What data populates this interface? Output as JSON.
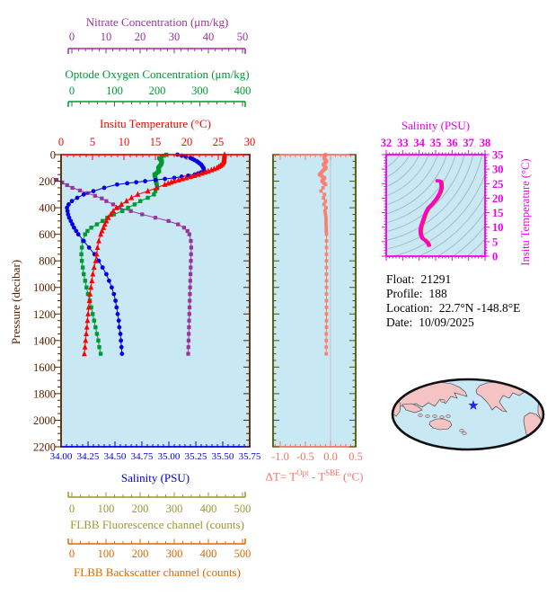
{
  "figure": {
    "bg": "#FFFFFF",
    "plot_bg": "#C8E8F3"
  },
  "axes": {
    "nitrate": {
      "title": "Nitrate Concentration (μm/kg)",
      "color": "#993399",
      "ticks": [
        0,
        10,
        20,
        30,
        40,
        50
      ],
      "range": [
        0,
        50
      ]
    },
    "oxygen": {
      "title": "Optode Oxygen Concentration (μm/kg)",
      "color": "#009933",
      "ticks": [
        0,
        100,
        200,
        300,
        400
      ],
      "range": [
        0,
        400
      ]
    },
    "temperature": {
      "title": "Insitu Temperature (°C)",
      "color": "#FF0000",
      "ticks": [
        0,
        5,
        10,
        15,
        20,
        25,
        30
      ],
      "range": [
        0,
        30
      ]
    },
    "salinity": {
      "title": "Salinity (PSU)",
      "color": "#0000E6",
      "ticks": [
        "34.00",
        "34.25",
        "34.50",
        "34.75",
        "35.00",
        "35.25",
        "35.50",
        "35.75"
      ],
      "range": [
        34.0,
        35.75
      ]
    },
    "pressure": {
      "title": "Pressure (decibar)",
      "color": "#552200",
      "ticks": [
        0,
        200,
        400,
        600,
        800,
        1000,
        1200,
        1400,
        1600,
        1800,
        2000,
        2200
      ],
      "range": [
        0,
        2200
      ]
    },
    "fluorescence": {
      "title": "FLBB Fluorescence channel (counts)",
      "color": "#999933",
      "ticks": [
        0,
        100,
        200,
        300,
        400,
        500
      ],
      "range": [
        0,
        500
      ]
    },
    "backscatter": {
      "title": "FLBB Backscatter channel (counts)",
      "color": "#E06800",
      "ticks": [
        0,
        100,
        200,
        300,
        400,
        500
      ],
      "range": [
        0,
        500
      ]
    },
    "delta_t": {
      "t1": "ΔT= T",
      "sup1": "Opt",
      "t2": " - T",
      "sup2": "SBE",
      "t3": " (°C)",
      "color": "#FA7268",
      "frame_color": "#4D5700",
      "ticks": [
        "-1.0",
        "-0.5",
        "0.0",
        "0.5"
      ],
      "tick_values": [
        -1.0,
        -0.5,
        0.0,
        0.5
      ],
      "range": [
        -1.143,
        0.5
      ]
    },
    "ts_salinity": {
      "title": "Salinity (PSU)",
      "color": "#EE00EE",
      "ticks": [
        32,
        33,
        34,
        35,
        36,
        37,
        38
      ],
      "range": [
        32,
        38
      ]
    },
    "ts_temperature": {
      "title": "Insitu Temperature (°C)",
      "color": "#EE00EE",
      "ticks": [
        0,
        5,
        10,
        15,
        20,
        25,
        30,
        35
      ],
      "range": [
        0,
        35
      ]
    }
  },
  "info": {
    "float_label": "Float:",
    "float_value": "21291",
    "profile_label": "Profile:",
    "profile_value": "188",
    "location_label": "Location:",
    "location_value": "22.7°N -148.8°E",
    "date_label": "Date:",
    "date_value": "10/09/2025"
  },
  "map": {
    "ocean_color": "#C8E8F3",
    "land_color": "#F4C4C4",
    "outline_color": "#111111",
    "star_color": "#2222EE"
  },
  "chart_data": [
    {
      "type": "line",
      "id": "main-profiles",
      "ylabel": "Pressure (decibar)",
      "ylim": [
        0,
        2200
      ],
      "grid": false,
      "pressure": [
        0,
        25,
        50,
        75,
        100,
        125,
        150,
        175,
        200,
        225,
        250,
        275,
        300,
        325,
        350,
        375,
        400,
        425,
        450,
        475,
        500,
        525,
        550,
        575,
        600,
        650,
        700,
        750,
        800,
        850,
        900,
        950,
        1000,
        1050,
        1100,
        1150,
        1200,
        1250,
        1300,
        1350,
        1400,
        1450,
        1500
      ],
      "series": [
        {
          "name": "Insitu Temperature (°C)",
          "color": "#FF0000",
          "marker": "triangle",
          "x_range": [
            0,
            30
          ],
          "values": [
            26.0,
            25.95,
            25.9,
            25.6,
            24.8,
            23.4,
            21.8,
            19.9,
            18.0,
            16.5,
            15.2,
            13.8,
            12.2,
            11.2,
            10.4,
            9.6,
            8.8,
            8.3,
            7.9,
            7.5,
            7.2,
            6.95,
            6.75,
            6.5,
            6.3,
            6.0,
            5.8,
            5.65,
            5.5,
            5.25,
            5.05,
            4.9,
            4.75,
            4.6,
            4.5,
            4.4,
            4.3,
            4.2,
            4.1,
            4.0,
            3.9,
            3.8,
            3.7
          ]
        },
        {
          "name": "Salinity (PSU)",
          "color": "#0000E6",
          "marker": "circle",
          "x_range": [
            34.0,
            35.75
          ],
          "values": [
            35.08,
            35.2,
            35.26,
            35.3,
            35.32,
            35.33,
            35.24,
            35.05,
            34.78,
            34.52,
            34.4,
            34.3,
            34.21,
            34.15,
            34.1,
            34.07,
            34.055,
            34.06,
            34.065,
            34.075,
            34.09,
            34.105,
            34.12,
            34.14,
            34.16,
            34.21,
            34.26,
            34.31,
            34.35,
            34.385,
            34.42,
            34.445,
            34.47,
            34.49,
            34.505,
            34.515,
            34.525,
            34.535,
            34.54,
            34.55,
            34.555,
            34.56,
            34.565
          ]
        },
        {
          "name": "Optode Oxygen Concentration (μm/kg)",
          "color": "#009933",
          "marker": "square",
          "x_range": [
            0,
            400
          ],
          "values": [
            223,
            208,
            214,
            212,
            206,
            208,
            198,
            200,
            201,
            203,
            204,
            200,
            197,
            184,
            168,
            156,
            142,
            130,
            112,
            98,
            88,
            76,
            64,
            56,
            51,
            46,
            44,
            43,
            44,
            46,
            48,
            51,
            54,
            57,
            61,
            64,
            67,
            70,
            73,
            76,
            79,
            81,
            84
          ]
        },
        {
          "name": "Nitrate Concentration (μm/kg)",
          "color": "#993399",
          "marker": "square",
          "x_range": [
            0,
            50
          ],
          "pressure": [
            190,
            210,
            230,
            250,
            270,
            290,
            310,
            330,
            350,
            375,
            400,
            425,
            450,
            475,
            500,
            525,
            550,
            575,
            600,
            650,
            700,
            750,
            800,
            850,
            900,
            950,
            1000,
            1050,
            1100,
            1150,
            1200,
            1250,
            1300,
            1350,
            1400,
            1450,
            1500
          ],
          "values": [
            -1.2,
            0.3,
            1.6,
            3.0,
            5.0,
            7.0,
            9.0,
            10.8,
            12.0,
            13.8,
            15.5,
            18.5,
            21.5,
            25.0,
            28.5,
            31.0,
            32.6,
            33.5,
            34.0,
            34.4,
            34.5,
            34.45,
            34.4,
            34.35,
            34.3,
            34.25,
            34.2,
            34.15,
            34.1,
            34.05,
            34.0,
            33.95,
            33.9,
            33.85,
            33.8,
            33.75,
            33.7
          ]
        }
      ]
    },
    {
      "type": "line",
      "id": "delta-t-profile",
      "xlabel": "ΔT= T^Opt - T^SBE (°C)",
      "xlim": [
        -1.0,
        0.5
      ],
      "ylim": [
        0,
        2200
      ],
      "pressure": [
        0,
        25,
        50,
        75,
        100,
        125,
        150,
        175,
        200,
        225,
        250,
        275,
        300,
        325,
        350,
        375,
        400,
        425,
        450,
        475,
        500,
        525,
        550,
        575,
        600,
        650,
        700,
        750,
        800,
        850,
        900,
        950,
        1000,
        1050,
        1100,
        1150,
        1200,
        1250,
        1300,
        1350,
        1400,
        1450,
        1500
      ],
      "series": [
        {
          "name": "ΔT",
          "color": "#FA8072",
          "marker": "square",
          "values": [
            -0.1,
            -0.13,
            -0.08,
            -0.14,
            -0.09,
            -0.16,
            -0.22,
            -0.12,
            -0.17,
            -0.1,
            -0.15,
            -0.19,
            -0.12,
            -0.14,
            -0.1,
            -0.13,
            -0.09,
            -0.11,
            -0.1,
            -0.09,
            -0.09,
            -0.09,
            -0.085,
            -0.085,
            -0.08,
            -0.08,
            -0.08,
            -0.08,
            -0.08,
            -0.08,
            -0.08,
            -0.08,
            -0.08,
            -0.08,
            -0.08,
            -0.08,
            -0.08,
            -0.08,
            -0.08,
            -0.085,
            -0.085,
            -0.085,
            -0.085
          ]
        }
      ]
    },
    {
      "type": "line",
      "id": "ts-diagram",
      "xlabel": "Salinity (PSU)",
      "ylabel": "Insitu Temperature (°C)",
      "xlim": [
        32,
        38
      ],
      "ylim": [
        0,
        35
      ],
      "note": "curve derived from temperature and salinity profiles; background shows density contours",
      "curve_color": "#FF00CC",
      "curve_under_color": "#FF2020",
      "contour_color": "#9FB0B5"
    },
    {
      "type": "map",
      "id": "location-map",
      "projection": "global-ellipse-pacific-centered",
      "marker": "star",
      "marker_note": "float position in North Pacific"
    }
  ]
}
